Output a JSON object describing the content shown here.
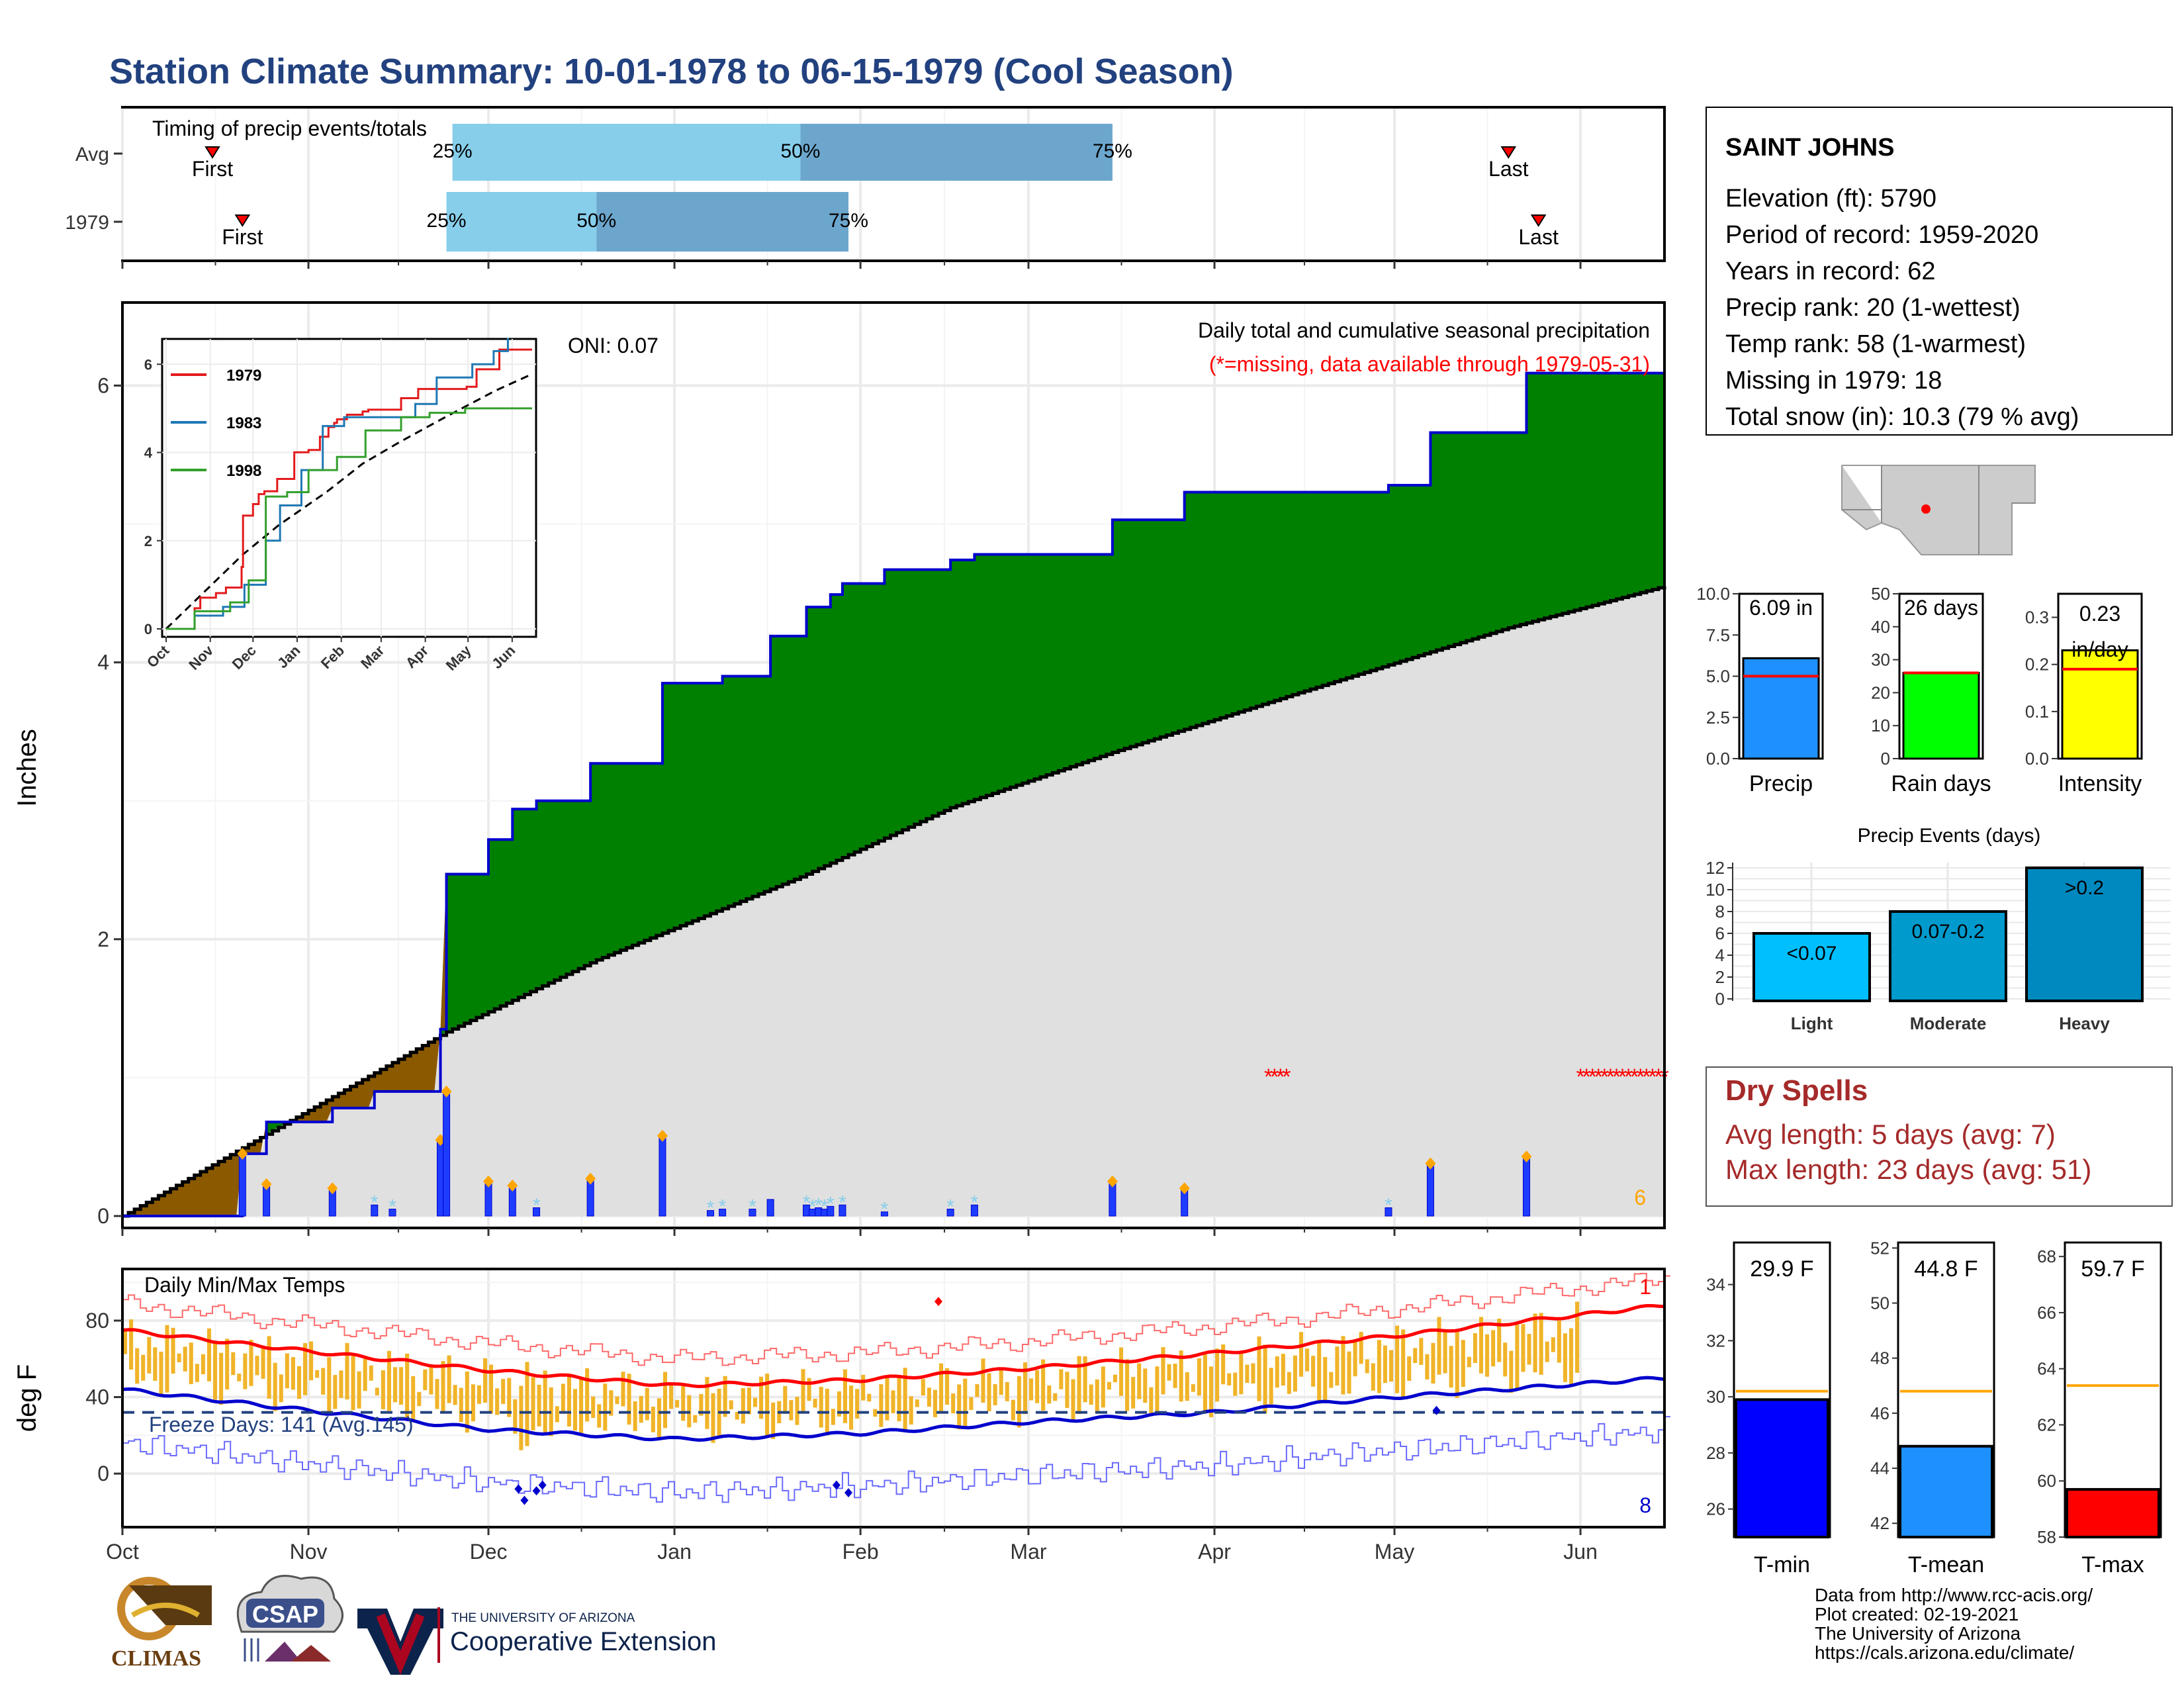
{
  "title": "Station Climate Summary: 10-01-1978 to 06-15-1979 (Cool Season)",
  "colors": {
    "title": "#22417f",
    "precip_cum": "#008000",
    "precip_line": "#0000cd",
    "avg_fill": "#e0e0e0",
    "pre_season": "#8b5a00",
    "q_light": "#87ceeb",
    "q_dark": "#6ca6cd",
    "temp_bar": "#f0b429",
    "tmax_avg": "#ff0000",
    "tmin_avg": "#0000cd",
    "dry_text": "#a52a2a"
  },
  "timing_panel": {
    "label": "Timing of precip events/totals",
    "rows": [
      {
        "label": "Avg",
        "first": "10-16",
        "q25": "11-25",
        "q50": "01-22",
        "q75": "03-15",
        "last": "05-20"
      },
      {
        "label": "1979",
        "first": "10-21",
        "q25": "11-24",
        "q50": "12-19",
        "q75": "01-30",
        "last": "05-25"
      }
    ],
    "first_label": "First",
    "last_label": "Last",
    "pct_labels": [
      "25%",
      "50%",
      "75%"
    ]
  },
  "precip_panel": {
    "ylabel": "Inches",
    "title": "Daily total and cumulative seasonal precipitation",
    "subtitle": "(*=missing, data available through 1979-05-31)",
    "oni": "ONI: 0.07",
    "count_label": "6",
    "yticks": [
      "0",
      "2",
      "4",
      "6"
    ],
    "xticks": [
      "Oct",
      "Nov",
      "Dec",
      "Jan",
      "Feb",
      "Mar",
      "Apr",
      "May",
      "Jun"
    ]
  },
  "inset": {
    "series": [
      {
        "name": "1979",
        "color": "#e31a1c"
      },
      {
        "name": "1983",
        "color": "#1f78b4"
      },
      {
        "name": "1998",
        "color": "#33a02c"
      }
    ],
    "yticks": [
      "0",
      "2",
      "4",
      "6"
    ],
    "xticks": [
      "Oct",
      "Nov",
      "Dec",
      "Jan",
      "Feb",
      "Mar",
      "Apr",
      "May",
      "Jun"
    ]
  },
  "temp_panel": {
    "ylabel": "deg F",
    "title": "Daily Min/Max Temps",
    "freeze": "Freeze Days: 141 (Avg.145)",
    "top_count": "1",
    "bottom_count": "8",
    "yticks": [
      "0",
      "40",
      "80"
    ],
    "xticks": [
      "Oct",
      "Nov",
      "Dec",
      "Jan",
      "Feb",
      "Mar",
      "Apr",
      "May",
      "Jun"
    ]
  },
  "station": {
    "name": "SAINT JOHNS",
    "lines": [
      "Elevation (ft): 5790",
      "Period of record: 1959-2020",
      "Years in record: 62",
      "Precip rank: 20 (1-wettest)",
      "Temp rank: 58 (1-warmest)",
      "Missing in 1979: 18",
      "Total snow (in): 10.3 (79 % avg)"
    ]
  },
  "summary_bars": [
    {
      "label": "Precip",
      "value": 6.09,
      "avg": 5.0,
      "ymax": 10,
      "text": "6.09 in",
      "color": "#1e90ff",
      "ticks": [
        "0.0",
        "2.5",
        "5.0",
        "7.5",
        "10.0"
      ]
    },
    {
      "label": "Rain days",
      "value": 26,
      "avg": 26,
      "ymax": 50,
      "text": "26 days",
      "color": "#00ff00",
      "ticks": [
        "0",
        "10",
        "20",
        "30",
        "40",
        "50"
      ]
    },
    {
      "label": "Intensity",
      "value": 0.23,
      "avg": 0.19,
      "ymax": 0.35,
      "text": "0.23 in/day",
      "color": "#ffff00",
      "ticks": [
        "0.0",
        "0.1",
        "0.2",
        "0.3"
      ]
    }
  ],
  "events": {
    "title": "Precip Events (days)",
    "ymax": 12,
    "ticks": [
      "0",
      "2",
      "4",
      "6",
      "8",
      "10",
      "12"
    ],
    "bars": [
      {
        "label": "Light",
        "value": 6,
        "text": "<0.07",
        "color": "#00bfff"
      },
      {
        "label": "Moderate",
        "value": 8,
        "text": "0.07-0.2",
        "color": "#009acd"
      },
      {
        "label": "Heavy",
        "value": 12,
        "text": ">0.2",
        "color": "#0089bf"
      }
    ]
  },
  "dry_spells": {
    "title": "Dry Spells",
    "avg": "Avg length: 5 days (avg: 7)",
    "max": "Max length: 23 days (avg: 51)"
  },
  "temp_bars": [
    {
      "label": "T-min",
      "value": 29.9,
      "avg": 30.2,
      "ymin": 25,
      "ymax": 35.5,
      "text": "29.9 F",
      "color": "#0000ff",
      "ticks": [
        "26",
        "28",
        "30",
        "32",
        "34"
      ]
    },
    {
      "label": "T-mean",
      "value": 44.8,
      "avg": 46.8,
      "ymin": 41.5,
      "ymax": 52.2,
      "text": "44.8 F",
      "color": "#1e90ff",
      "ticks": [
        "42",
        "44",
        "46",
        "48",
        "50",
        "52"
      ]
    },
    {
      "label": "T-max",
      "value": 59.7,
      "avg": 63.4,
      "ymin": 58,
      "ymax": 68.5,
      "text": "59.7 F",
      "color": "#ff0000",
      "ticks": [
        "58",
        "60",
        "62",
        "64",
        "66",
        "68"
      ]
    }
  ],
  "footer": {
    "lines": [
      "Data from http://www.rcc-acis.org/",
      "Plot created: 02-19-2021",
      "The University of Arizona",
      "https://cals.arizona.edu/climate/"
    ],
    "climas": "CLIMAS",
    "csap": "CSAP",
    "ua_small": "THE UNIVERSITY OF ARIZONA",
    "ua_big": "Cooperative Extension"
  },
  "chart_data": [
    {
      "type": "area",
      "title": "Daily total and cumulative seasonal precipitation",
      "ylabel": "Inches",
      "ylim": [
        0,
        6.6
      ],
      "x_range": [
        "1978-10-01",
        "1979-06-15"
      ],
      "series": [
        {
          "name": "1979",
          "x": [
            "1978-10-01",
            "1978-10-21",
            "1978-10-25",
            "1978-11-05",
            "1978-11-12",
            "1978-11-23",
            "1978-11-24",
            "1978-12-01",
            "1978-12-05",
            "1978-12-09",
            "1978-12-18",
            "1978-12-30",
            "1979-01-09",
            "1979-01-17",
            "1979-01-23",
            "1979-01-27",
            "1979-01-29",
            "1979-02-05",
            "1979-02-16",
            "1979-02-20",
            "1979-03-15",
            "1979-03-27",
            "1979-04-30",
            "1979-05-07",
            "1979-05-23",
            "1979-06-15"
          ],
          "y": [
            0,
            0.45,
            0.68,
            0.78,
            0.9,
            1.35,
            2.47,
            2.72,
            2.94,
            3.0,
            3.27,
            3.85,
            3.9,
            4.19,
            4.4,
            4.49,
            4.57,
            4.67,
            4.74,
            4.78,
            5.03,
            5.23,
            5.28,
            5.66,
            6.09,
            6.09
          ]
        }
      ],
      "average_line": {
        "x": [
          "1978-10-01",
          "1978-11-24",
          "1978-12-19",
          "1979-01-22",
          "1979-02-16",
          "1979-03-15",
          "1979-04-15",
          "1979-05-20",
          "1979-06-15"
        ],
        "y": [
          0,
          1.33,
          1.85,
          2.45,
          2.95,
          3.35,
          3.78,
          4.25,
          4.55
        ]
      },
      "daily": {
        "x": [
          "1978-10-21",
          "1978-10-25",
          "1978-11-05",
          "1978-11-12",
          "1978-11-15",
          "1978-11-23",
          "1978-11-24",
          "1978-12-01",
          "1978-12-05",
          "1978-12-09",
          "1978-12-18",
          "1978-12-30",
          "1979-01-07",
          "1979-01-09",
          "1979-01-14",
          "1979-01-17",
          "1979-01-23",
          "1979-01-24",
          "1979-01-25",
          "1979-01-26",
          "1979-01-27",
          "1979-01-29",
          "1979-02-05",
          "1979-02-16",
          "1979-02-20",
          "1979-03-15",
          "1979-03-27",
          "1979-04-30",
          "1979-05-07",
          "1979-05-23"
        ],
        "y": [
          0.45,
          0.23,
          0.2,
          0.08,
          0.05,
          0.55,
          0.9,
          0.25,
          0.22,
          0.06,
          0.27,
          0.58,
          0.04,
          0.05,
          0.05,
          0.12,
          0.08,
          0.05,
          0.06,
          0.05,
          0.07,
          0.08,
          0.03,
          0.05,
          0.08,
          0.25,
          0.2,
          0.06,
          0.38,
          0.43
        ]
      }
    },
    {
      "type": "line",
      "title": "Daily Min/Max Temps",
      "ylabel": "deg F",
      "ylim": [
        -28,
        107
      ],
      "series": [
        {
          "name": "Avg max",
          "x": [
            "1978-10-01",
            "1978-11-01",
            "1978-12-01",
            "1979-01-01",
            "1979-02-01",
            "1979-03-01",
            "1979-04-01",
            "1979-05-01",
            "1979-06-15"
          ],
          "y": [
            75,
            64,
            54,
            46,
            49,
            55,
            63,
            72,
            88
          ]
        },
        {
          "name": "Avg min",
          "x": [
            "1978-10-01",
            "1978-11-01",
            "1978-12-01",
            "1979-01-01",
            "1979-02-01",
            "1979-03-01",
            "1979-04-01",
            "1979-05-01",
            "1979-06-15"
          ],
          "y": [
            44,
            33,
            23,
            18,
            21,
            27,
            32,
            40,
            50
          ]
        }
      ],
      "freeze_threshold": 32
    }
  ]
}
